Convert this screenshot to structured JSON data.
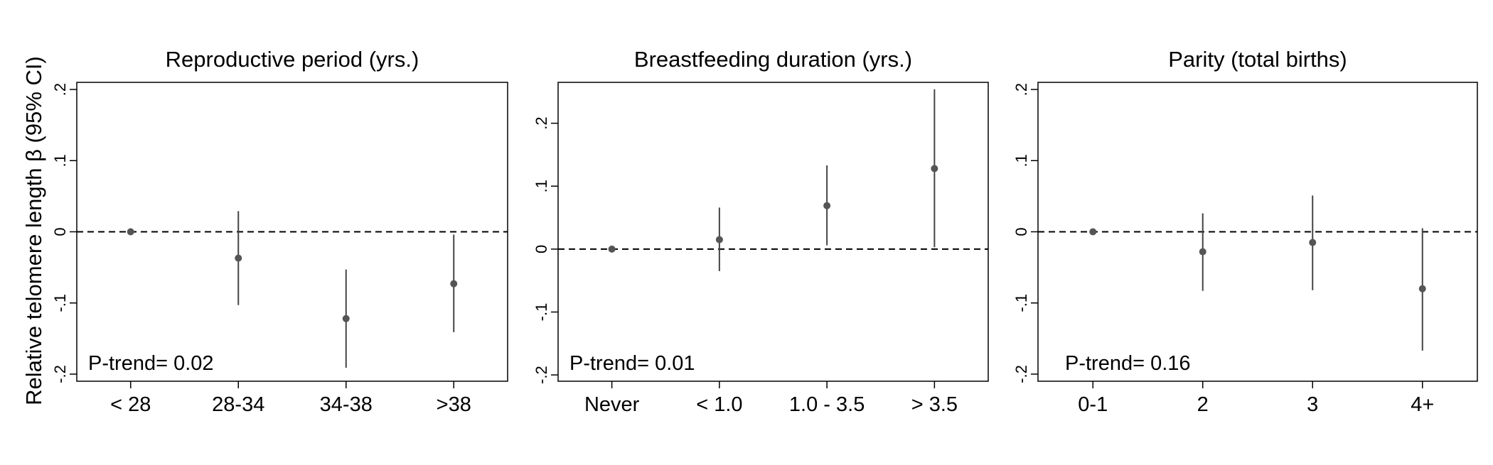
{
  "figure": {
    "ylabel": "Relative telomere length β (95% CI)"
  },
  "chart_data": [
    {
      "type": "scatter",
      "title": "Reproductive period (yrs.)",
      "xlabel": "",
      "ylabel": "Relative telomere length β (95% CI)",
      "categories": [
        "< 28",
        "28-34",
        "34-38",
        ">38"
      ],
      "estimates": [
        0.0,
        -0.037,
        -0.122,
        -0.073
      ],
      "ci_lower": [
        0.0,
        -0.103,
        -0.191,
        -0.141
      ],
      "ci_upper": [
        0.0,
        0.029,
        -0.053,
        -0.004
      ],
      "ylim": [
        -0.21,
        0.21
      ],
      "yticks": [
        -0.2,
        -0.1,
        0,
        0.1,
        0.2
      ],
      "ytick_labels": [
        "-.2",
        "-.1",
        "0",
        ".1",
        ".2"
      ],
      "reference_line": 0,
      "annotation": "P-trend= 0.02"
    },
    {
      "type": "scatter",
      "title": "Breastfeeding duration (yrs.)",
      "xlabel": "",
      "ylabel": "",
      "categories": [
        "Never",
        "< 1.0",
        "1.0 - 3.5",
        "> 3.5"
      ],
      "estimates": [
        0.0,
        0.015,
        0.069,
        0.128
      ],
      "ci_lower": [
        0.0,
        -0.035,
        0.006,
        0.003
      ],
      "ci_upper": [
        0.0,
        0.066,
        0.133,
        0.254
      ],
      "ylim": [
        -0.21,
        0.265
      ],
      "yticks": [
        -0.2,
        -0.1,
        0,
        0.1,
        0.2
      ],
      "ytick_labels": [
        "-.2",
        "-.1",
        "0",
        ".1",
        ".2"
      ],
      "reference_line": 0,
      "annotation": "P-trend= 0.01"
    },
    {
      "type": "scatter",
      "title": "Parity (total births)",
      "xlabel": "",
      "ylabel": "",
      "categories": [
        "0-1",
        "2",
        "3",
        "4+"
      ],
      "estimates": [
        0.0,
        -0.028,
        -0.015,
        -0.08
      ],
      "ci_lower": [
        0.0,
        -0.083,
        -0.082,
        -0.167
      ],
      "ci_upper": [
        0.0,
        0.026,
        0.051,
        0.005
      ],
      "ylim": [
        -0.21,
        0.21
      ],
      "yticks": [
        -0.2,
        -0.1,
        0,
        0.1,
        0.2
      ],
      "ytick_labels": [
        "-.2",
        "-.1",
        "0",
        ".1",
        ".2"
      ],
      "reference_line": 0,
      "annotation": "P-trend= 0.16"
    }
  ]
}
